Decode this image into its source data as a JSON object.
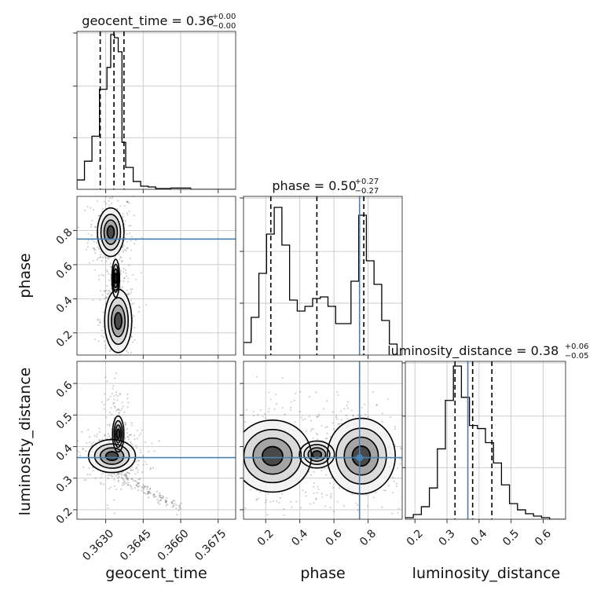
{
  "chart_data": {
    "type": "corner",
    "truth_color": "#4682b4",
    "grid": true,
    "parameters": [
      {
        "key": "geocent_time",
        "label": "geocent_time",
        "range": [
          0.36185,
          0.3682
        ],
        "ticks": [
          0.363,
          0.3645,
          0.366,
          0.3675
        ],
        "tick_labels": [
          "0.3630",
          "0.3645",
          "0.3660",
          "0.3675"
        ],
        "title": {
          "text": "geocent_time = 0.36",
          "sup": "+0.00",
          "sub": "−0.00"
        },
        "quantiles": [
          0.36278,
          0.36333,
          0.36373
        ],
        "truth": null,
        "hist_bins": [
          0.36185,
          0.36215,
          0.36245,
          0.36275,
          0.36305,
          0.3632,
          0.36335,
          0.3635,
          0.36365,
          0.3638,
          0.3641,
          0.3644,
          0.3647,
          0.365,
          0.3656,
          0.3664,
          0.3682
        ],
        "hist_counts": [
          0.06,
          0.18,
          0.34,
          0.64,
          0.78,
          0.99,
          0.97,
          0.88,
          0.3,
          0.14,
          0.05,
          0.02,
          0.015,
          0.005,
          0.008,
          0.0
        ]
      },
      {
        "key": "phase",
        "label": "phase",
        "range": [
          0.07,
          1.0
        ],
        "ticks": [
          0.2,
          0.4,
          0.6,
          0.8
        ],
        "tick_labels": [
          "0.2",
          "0.4",
          "0.6",
          "0.8"
        ],
        "title": {
          "text": "phase = 0.50",
          "sup": "+0.27",
          "sub": "−0.27"
        },
        "quantiles": [
          0.23,
          0.5,
          0.775
        ],
        "truth": 0.75,
        "hist_bins": [
          0.07,
          0.115,
          0.16,
          0.205,
          0.25,
          0.295,
          0.34,
          0.385,
          0.43,
          0.475,
          0.52,
          0.565,
          0.61,
          0.655,
          0.7,
          0.745,
          0.79,
          0.835,
          0.88,
          0.925,
          0.97
        ],
        "hist_counts": [
          0.08,
          0.24,
          0.52,
          0.77,
          0.94,
          0.7,
          0.35,
          0.28,
          0.31,
          0.36,
          0.37,
          0.31,
          0.2,
          0.2,
          0.47,
          0.89,
          0.6,
          0.45,
          0.22,
          0.07
        ]
      },
      {
        "key": "luminosity_distance",
        "label": "luminosity_distance",
        "range": [
          0.17,
          0.67
        ],
        "ticks": [
          0.2,
          0.3,
          0.4,
          0.5,
          0.6
        ],
        "tick_labels": [
          "0.2",
          "0.3",
          "0.4",
          "0.5",
          "0.6"
        ],
        "title": {
          "text": "luminosity_distance = 0.38",
          "sup": "+0.06",
          "sub": "−0.05"
        },
        "quantiles": [
          0.325,
          0.38,
          0.44
        ],
        "truth": 0.365,
        "hist_bins": [
          0.17,
          0.195,
          0.22,
          0.245,
          0.27,
          0.295,
          0.32,
          0.345,
          0.37,
          0.395,
          0.42,
          0.445,
          0.47,
          0.495,
          0.52,
          0.545,
          0.57,
          0.595,
          0.62,
          0.645,
          0.67
        ],
        "hist_counts": [
          0.01,
          0.03,
          0.08,
          0.2,
          0.45,
          0.76,
          0.98,
          0.78,
          0.6,
          0.58,
          0.49,
          0.36,
          0.22,
          0.1,
          0.06,
          0.035,
          0.02,
          0.01,
          0.0,
          0.0
        ]
      }
    ],
    "density_blobs": [
      {
        "x": "geocent_time",
        "y": "phase",
        "blobs": [
          [
            0.3632,
            0.79,
            0.00028,
            0.075,
            1.0
          ],
          [
            0.3635,
            0.27,
            0.00022,
            0.075,
            1.3
          ],
          [
            0.3634,
            0.52,
            0.00018,
            0.13,
            0.45
          ]
        ]
      },
      {
        "x": "geocent_time",
        "y": "luminosity_distance",
        "blobs": [
          [
            0.36325,
            0.37,
            0.00045,
            0.025,
            1.1
          ],
          [
            0.3635,
            0.44,
            0.0002,
            0.05,
            0.6
          ]
        ]
      },
      {
        "x": "phase",
        "y": "luminosity_distance",
        "blobs": [
          [
            0.24,
            0.37,
            0.12,
            0.06,
            1.0
          ],
          [
            0.76,
            0.37,
            0.1,
            0.06,
            1.05
          ],
          [
            0.5,
            0.375,
            0.12,
            0.05,
            0.45
          ]
        ]
      }
    ]
  }
}
